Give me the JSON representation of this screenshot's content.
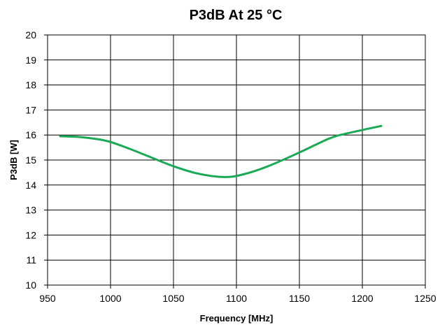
{
  "chart_data": {
    "type": "line",
    "title": "P3dB At 25 °C",
    "xlabel": "Frequency [MHz]",
    "ylabel": "P3dB [W]",
    "xlim": [
      950,
      1250
    ],
    "ylim": [
      10,
      20
    ],
    "xticks": [
      950,
      1000,
      1050,
      1100,
      1150,
      1200,
      1250
    ],
    "yticks": [
      10,
      11,
      12,
      13,
      14,
      15,
      16,
      17,
      18,
      19,
      20
    ],
    "grid": true,
    "legend": false,
    "series": [
      {
        "color": "#1aaa55",
        "x": [
          960,
          975,
          990,
          1000,
          1015,
          1030,
          1050,
          1070,
          1090,
          1105,
          1125,
          1150,
          1170,
          1180,
          1200,
          1215
        ],
        "y": [
          15.95,
          15.92,
          15.83,
          15.72,
          15.45,
          15.15,
          14.75,
          14.45,
          14.32,
          14.42,
          14.75,
          15.3,
          15.78,
          15.97,
          16.2,
          16.36
        ]
      }
    ]
  }
}
